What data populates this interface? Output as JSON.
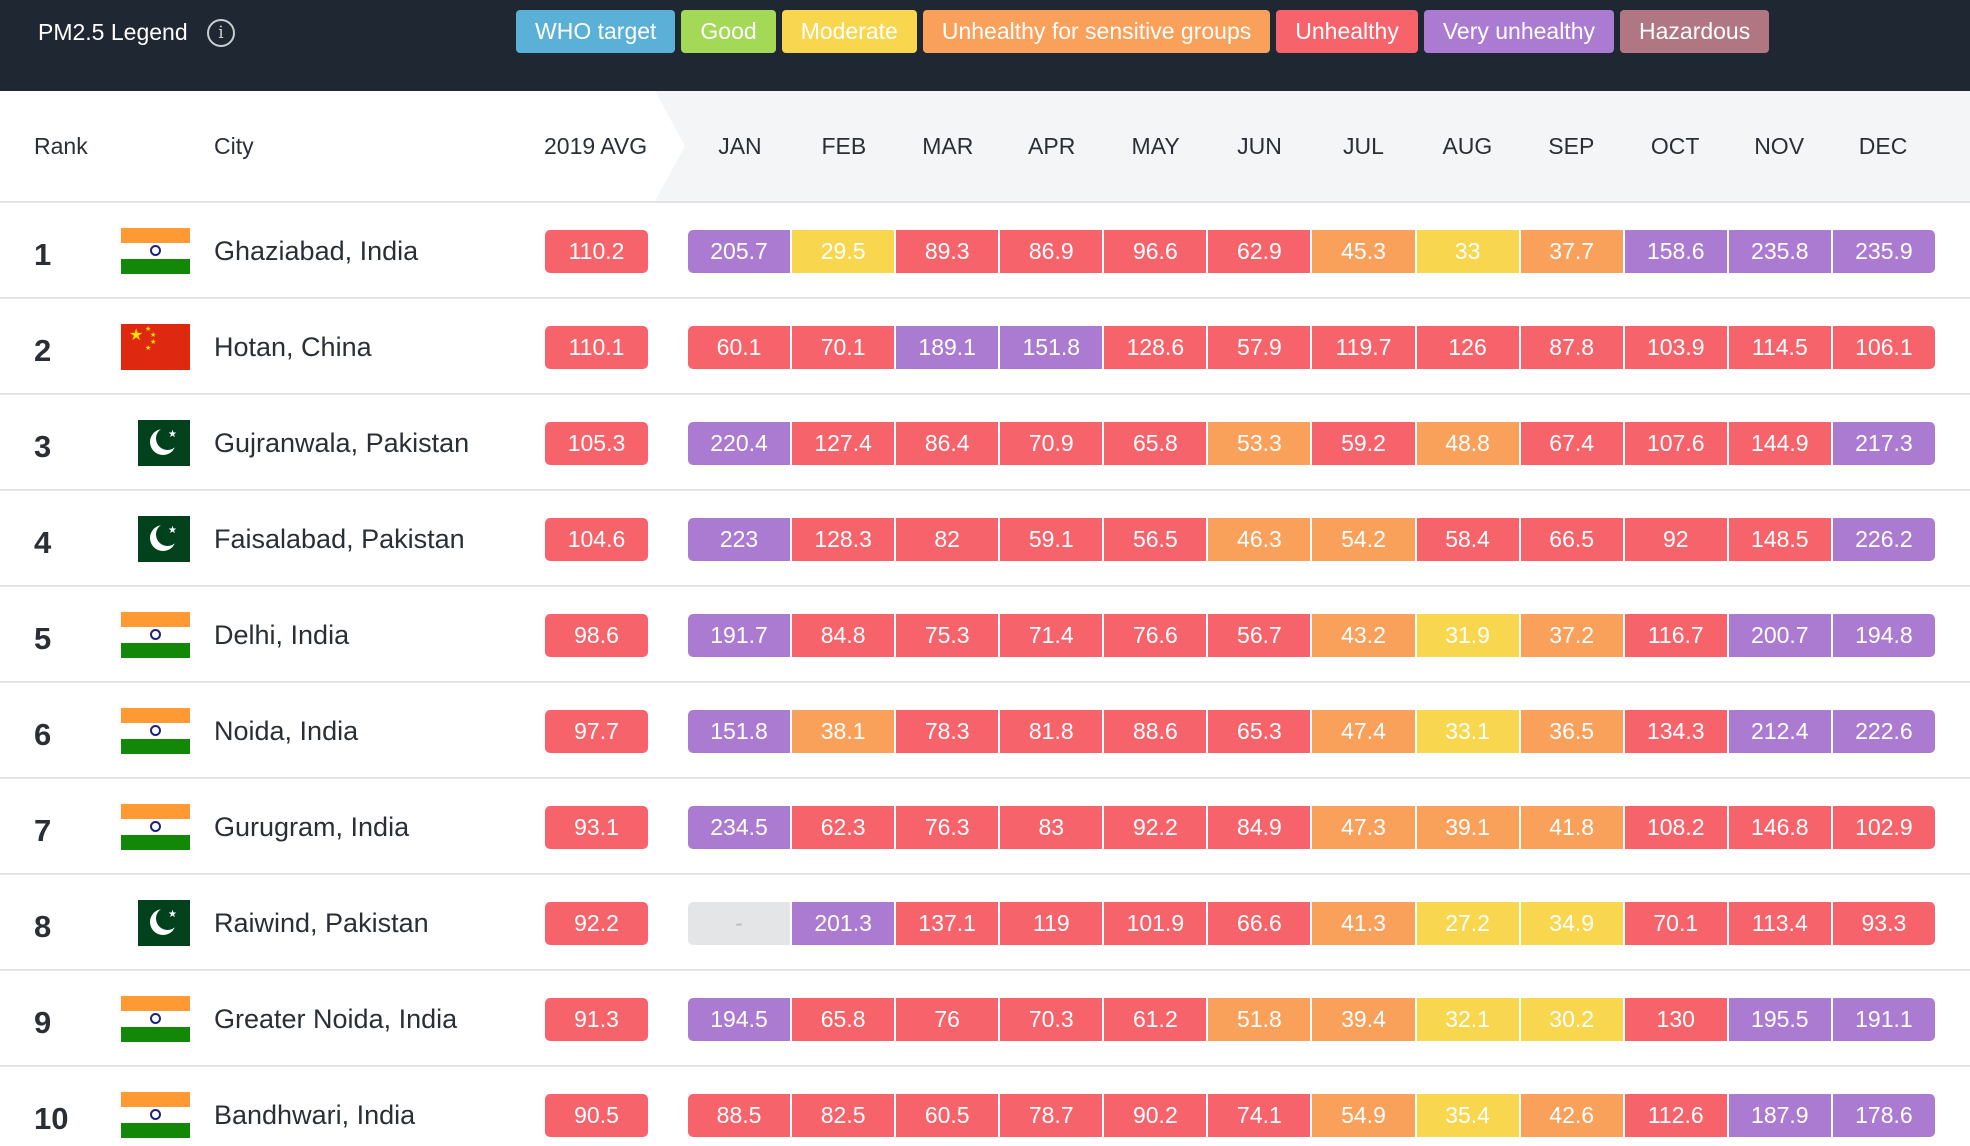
{
  "legend": {
    "title": "PM2.5 Legend",
    "info_icon": "info-circle-icon",
    "items": [
      {
        "label": "WHO target",
        "color": "#5ab0d6"
      },
      {
        "label": "Good",
        "color": "#a3d956"
      },
      {
        "label": "Moderate",
        "color": "#f8d64e"
      },
      {
        "label": "Unhealthy for sensitive groups",
        "color": "#f9a05a"
      },
      {
        "label": "Unhealthy",
        "color": "#f6636b"
      },
      {
        "label": "Very unhealthy",
        "color": "#ab7bd1"
      },
      {
        "label": "Hazardous",
        "color": "#b07682"
      }
    ]
  },
  "status_colors": {
    "moderate": "#f8d64e",
    "sensitive": "#f9a05a",
    "unhealthy": "#f6636b",
    "very_unhealthy": "#ab7bd1",
    "no_data": "#e4e5e7"
  },
  "table": {
    "headers": {
      "rank": "Rank",
      "city": "City",
      "avg": "2019 AVG",
      "months": [
        "JAN",
        "FEB",
        "MAR",
        "APR",
        "MAY",
        "JUN",
        "JUL",
        "AUG",
        "SEP",
        "OCT",
        "NOV",
        "DEC"
      ]
    },
    "rows": [
      {
        "rank": "1",
        "flag": "india-flag-icon",
        "city": "Ghaziabad, India",
        "avg": "110.2",
        "months": [
          "205.7",
          "29.5",
          "89.3",
          "86.9",
          "96.6",
          "62.9",
          "45.3",
          "33",
          "37.7",
          "158.6",
          "235.8",
          "235.9"
        ]
      },
      {
        "rank": "2",
        "flag": "china-flag-icon",
        "city": "Hotan, China",
        "avg": "110.1",
        "months": [
          "60.1",
          "70.1",
          "189.1",
          "151.8",
          "128.6",
          "57.9",
          "119.7",
          "126",
          "87.8",
          "103.9",
          "114.5",
          "106.1"
        ]
      },
      {
        "rank": "3",
        "flag": "pakistan-flag-icon",
        "city": "Gujranwala, Pakistan",
        "avg": "105.3",
        "months": [
          "220.4",
          "127.4",
          "86.4",
          "70.9",
          "65.8",
          "53.3",
          "59.2",
          "48.8",
          "67.4",
          "107.6",
          "144.9",
          "217.3"
        ]
      },
      {
        "rank": "4",
        "flag": "pakistan-flag-icon",
        "city": "Faisalabad, Pakistan",
        "avg": "104.6",
        "months": [
          "223",
          "128.3",
          "82",
          "59.1",
          "56.5",
          "46.3",
          "54.2",
          "58.4",
          "66.5",
          "92",
          "148.5",
          "226.2"
        ]
      },
      {
        "rank": "5",
        "flag": "india-flag-icon",
        "city": "Delhi, India",
        "avg": "98.6",
        "months": [
          "191.7",
          "84.8",
          "75.3",
          "71.4",
          "76.6",
          "56.7",
          "43.2",
          "31.9",
          "37.2",
          "116.7",
          "200.7",
          "194.8"
        ]
      },
      {
        "rank": "6",
        "flag": "india-flag-icon",
        "city": "Noida, India",
        "avg": "97.7",
        "months": [
          "151.8",
          "38.1",
          "78.3",
          "81.8",
          "88.6",
          "65.3",
          "47.4",
          "33.1",
          "36.5",
          "134.3",
          "212.4",
          "222.6"
        ]
      },
      {
        "rank": "7",
        "flag": "india-flag-icon",
        "city": "Gurugram, India",
        "avg": "93.1",
        "months": [
          "234.5",
          "62.3",
          "76.3",
          "83",
          "92.2",
          "84.9",
          "47.3",
          "39.1",
          "41.8",
          "108.2",
          "146.8",
          "102.9"
        ]
      },
      {
        "rank": "8",
        "flag": "pakistan-flag-icon",
        "city": "Raiwind, Pakistan",
        "avg": "92.2",
        "months": [
          "-",
          "201.3",
          "137.1",
          "119",
          "101.9",
          "66.6",
          "41.3",
          "27.2",
          "34.9",
          "70.1",
          "113.4",
          "93.3"
        ]
      },
      {
        "rank": "9",
        "flag": "india-flag-icon",
        "city": "Greater Noida, India",
        "avg": "91.3",
        "months": [
          "194.5",
          "65.8",
          "76",
          "70.3",
          "61.2",
          "51.8",
          "39.4",
          "32.1",
          "30.2",
          "130",
          "195.5",
          "191.1"
        ]
      },
      {
        "rank": "10",
        "flag": "india-flag-icon",
        "city": "Bandhwari, India",
        "avg": "90.5",
        "months": [
          "88.5",
          "82.5",
          "60.5",
          "78.7",
          "90.2",
          "74.1",
          "54.9",
          "35.4",
          "42.6",
          "112.6",
          "187.9",
          "178.6"
        ]
      }
    ]
  }
}
